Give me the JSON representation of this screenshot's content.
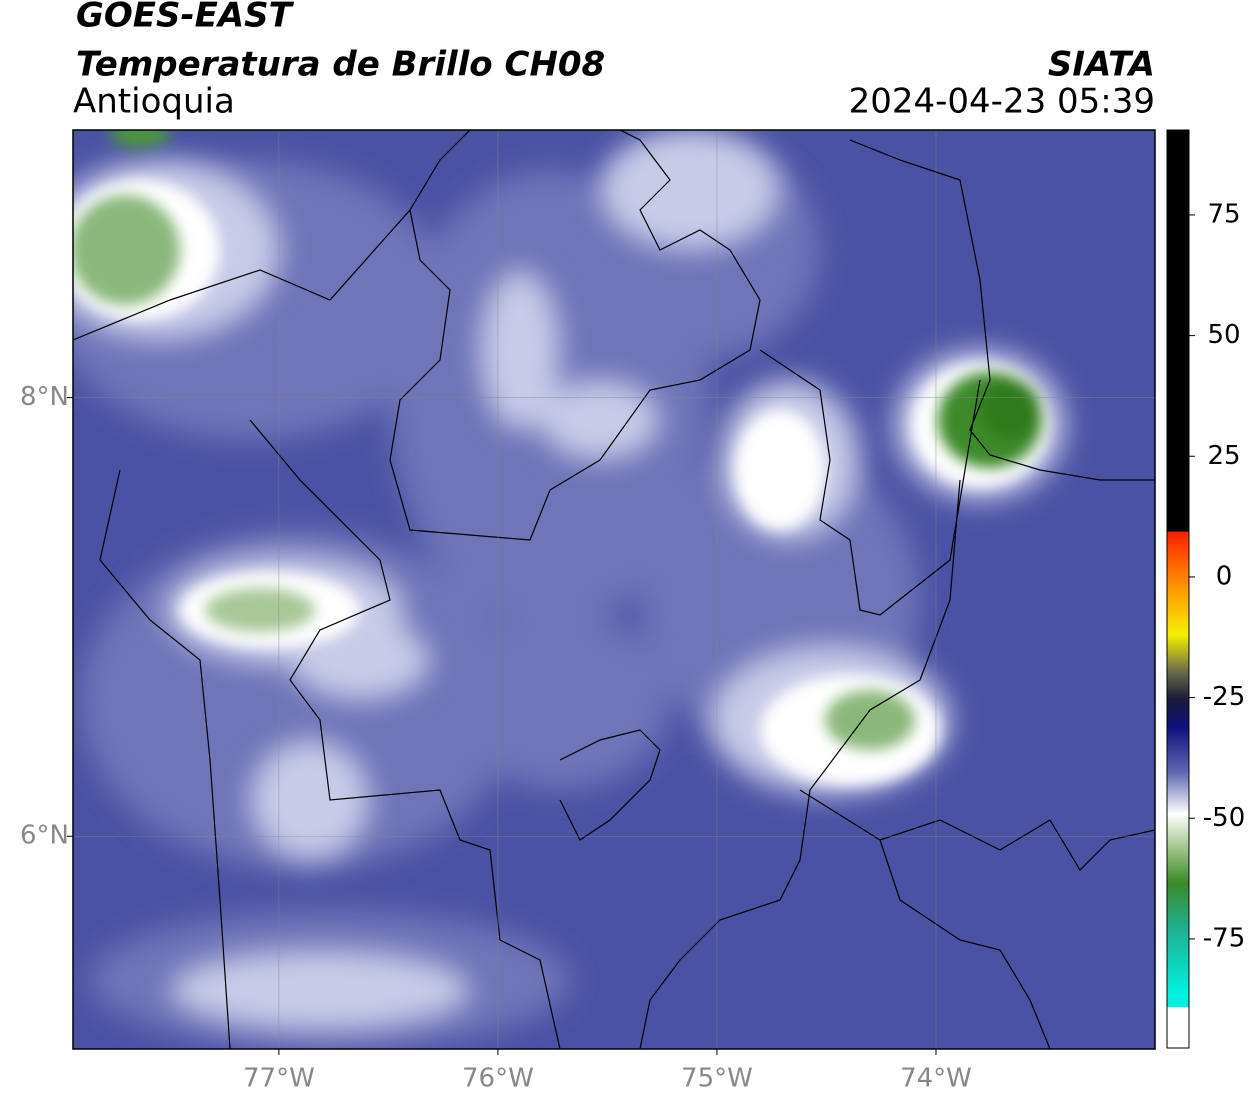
{
  "map": {
    "satellite": "GOES-EAST",
    "title": "Temperatura de Brillo CH08",
    "region": "Antioquia",
    "source": "SIATA",
    "timestamp": "2024-04-23 05:39",
    "xlim": [
      -77.94,
      -73.0
    ],
    "ylim": [
      5.03,
      9.22
    ],
    "xticks": [
      {
        "value": -77,
        "label": "77°W"
      },
      {
        "value": -76,
        "label": "76°W"
      },
      {
        "value": -75,
        "label": "75°W"
      },
      {
        "value": -74,
        "label": "74°W"
      }
    ],
    "yticks": [
      {
        "value": 8,
        "label": "8°N"
      },
      {
        "value": 6,
        "label": "6°N"
      }
    ],
    "colorbar": {
      "lim": [
        -97.6,
        92.6
      ],
      "ticks": [
        75,
        50,
        25,
        0,
        -25,
        -50,
        -75
      ]
    }
  }
}
